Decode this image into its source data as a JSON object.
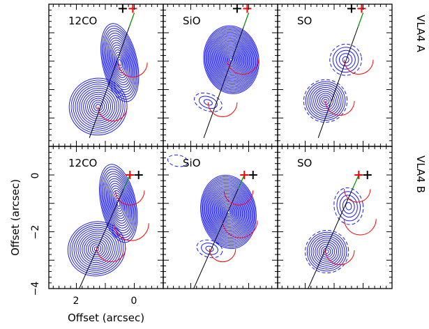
{
  "chart_data": {
    "type": "contour",
    "layout": {
      "rows": 2,
      "cols": 3
    },
    "row_labels": [
      "VLA4 A",
      "VLA4 B"
    ],
    "column_molecules": [
      "12CO",
      "SiO",
      "SO"
    ],
    "xlabel": "Offset (arcsec)",
    "ylabel": "Offset (arcsec)",
    "x_ticks": [
      "2",
      "0"
    ],
    "y_ticks": [
      "0",
      "−2",
      "−4"
    ],
    "xlim": [
      3.2,
      -0.9
    ],
    "ylim": [
      -4.1,
      0.9
    ],
    "axis_inverted_x": true,
    "contour_color": "#1a1aff",
    "line_color": "#000000",
    "marker_colors": {
      "vla4a": "#000000",
      "vla4b": "#ff0000",
      "arrow": "#00a000",
      "arc": "#ff0000"
    },
    "panels": [
      {
        "row": "VLA4 A",
        "molecule": "12CO",
        "markers": {
          "black_plus": [
            0.4,
            0.85
          ],
          "red_plus": [
            0.05,
            0.85
          ]
        },
        "line": {
          "from": [
            1.55,
            -3.7
          ],
          "to": [
            0.0,
            0.7
          ]
        },
        "components": [
          {
            "center": [
              1.25,
              -2.6
            ],
            "rx": 1.0,
            "ry": 1.0,
            "angle": -20,
            "levels": 14,
            "min_frac": 0.08
          },
          {
            "center": [
              0.5,
              -1.05
            ],
            "rx": 0.6,
            "ry": 1.4,
            "angle": -12,
            "levels": 16,
            "min_frac": 0.08
          }
        ],
        "arcs": [
          {
            "center": [
              0.75,
              -2.6
            ],
            "r": 0.5
          },
          {
            "center": [
              0.05,
              -1.05
            ],
            "r": 0.5
          }
        ]
      },
      {
        "row": "VLA4 A",
        "molecule": "SiO",
        "markers": {
          "black_plus": [
            0.4,
            0.85
          ],
          "red_plus": [
            0.05,
            0.85
          ]
        },
        "line": {
          "from": [
            1.55,
            -3.7
          ],
          "to": [
            0.0,
            0.7
          ]
        },
        "components": [
          {
            "center": [
              0.6,
              -0.95
            ],
            "rx": 0.95,
            "ry": 1.2,
            "angle": -8,
            "levels": 26,
            "min_frac": 0.05
          },
          {
            "center": [
              1.4,
              -2.45
            ],
            "rx": 0.5,
            "ry": 0.3,
            "angle": 20,
            "levels": 3,
            "min_frac": 0.3,
            "dashed_outer": true
          }
        ],
        "arcs": [
          {
            "center": [
              0.9,
              -2.45
            ],
            "r": 0.5
          },
          {
            "center": [
              0.2,
              -0.9
            ],
            "r": 0.55
          }
        ]
      },
      {
        "row": "VLA4 A",
        "molecule": "SO",
        "markers": {
          "black_plus": [
            0.4,
            0.85
          ],
          "red_plus": [
            0.05,
            0.85
          ]
        },
        "line": {
          "from": [
            1.55,
            -3.7
          ],
          "to": [
            0.0,
            0.7
          ]
        },
        "components": [
          {
            "center": [
              1.3,
              -2.4
            ],
            "rx": 0.75,
            "ry": 0.75,
            "angle": -10,
            "levels": 11,
            "min_frac": 0.08,
            "dashed_outer": true
          },
          {
            "center": [
              0.6,
              -0.95
            ],
            "rx": 0.55,
            "ry": 0.55,
            "angle": -10,
            "levels": 5,
            "min_frac": 0.2,
            "dashed_outer": true
          }
        ],
        "arcs": [
          {
            "center": [
              0.8,
              -2.4
            ],
            "r": 0.5
          },
          {
            "center": [
              0.15,
              -0.95
            ],
            "r": 0.5
          }
        ]
      },
      {
        "row": "VLA4 B",
        "molecule": "12CO",
        "markers": {
          "black_plus": [
            -0.15,
            0.0
          ],
          "red_plus": [
            0.15,
            0.0
          ]
        },
        "line": {
          "from": [
            1.9,
            -4.0
          ],
          "to": [
            0.15,
            0.0
          ]
        },
        "components": [
          {
            "center": [
              1.3,
              -2.6
            ],
            "rx": 1.0,
            "ry": 0.95,
            "angle": -20,
            "levels": 14,
            "min_frac": 0.08
          },
          {
            "center": [
              0.55,
              -1.0
            ],
            "rx": 0.6,
            "ry": 1.4,
            "angle": -12,
            "levels": 16,
            "min_frac": 0.08
          }
        ],
        "arcs": [
          {
            "center": [
              0.8,
              -2.55
            ],
            "r": 0.5
          },
          {
            "center": [
              0.15,
              -0.55
            ],
            "r": 0.5
          },
          {
            "center": [
              0.1,
              -1.7
            ],
            "r": 0.6
          }
        ]
      },
      {
        "row": "VLA4 B",
        "molecule": "SiO",
        "markers": {
          "black_plus": [
            -0.15,
            0.0
          ],
          "red_plus": [
            0.15,
            0.0
          ]
        },
        "line": {
          "from": [
            1.9,
            -4.0
          ],
          "to": [
            0.15,
            0.0
          ]
        },
        "components": [
          {
            "center": [
              0.7,
              -1.3
            ],
            "rx": 0.95,
            "ry": 1.3,
            "angle": -10,
            "levels": 26,
            "min_frac": 0.05
          },
          {
            "center": [
              1.35,
              -2.6
            ],
            "rx": 0.45,
            "ry": 0.3,
            "angle": 15,
            "levels": 3,
            "min_frac": 0.3,
            "dashed_outer": true
          },
          {
            "center": [
              2.45,
              0.5
            ],
            "rx": 0.35,
            "ry": 0.2,
            "angle": 10,
            "levels": 1,
            "min_frac": 1.0,
            "dashed_outer": true
          }
        ],
        "arcs": [
          {
            "center": [
              0.9,
              -2.6
            ],
            "r": 0.45
          },
          {
            "center": [
              0.35,
              -0.55
            ],
            "r": 0.5
          },
          {
            "center": [
              0.3,
              -1.6
            ],
            "r": 0.6
          }
        ]
      },
      {
        "row": "VLA4 B",
        "molecule": "SO",
        "markers": {
          "black_plus": [
            -0.15,
            0.0
          ],
          "red_plus": [
            0.15,
            0.0
          ]
        },
        "line": {
          "from": [
            1.9,
            -4.0
          ],
          "to": [
            0.15,
            0.0
          ]
        },
        "components": [
          {
            "center": [
              1.25,
              -2.7
            ],
            "rx": 0.75,
            "ry": 0.75,
            "angle": -10,
            "levels": 11,
            "min_frac": 0.08,
            "dashed_outer": true
          },
          {
            "center": [
              0.5,
              -1.1
            ],
            "rx": 0.5,
            "ry": 0.65,
            "angle": -10,
            "levels": 5,
            "min_frac": 0.2,
            "dashed_outer": true
          }
        ],
        "arcs": [
          {
            "center": [
              0.8,
              -2.65
            ],
            "r": 0.5
          },
          {
            "center": [
              0.2,
              -0.5
            ],
            "r": 0.45
          },
          {
            "center": [
              0.1,
              -1.55
            ],
            "r": 0.55
          }
        ]
      }
    ]
  }
}
